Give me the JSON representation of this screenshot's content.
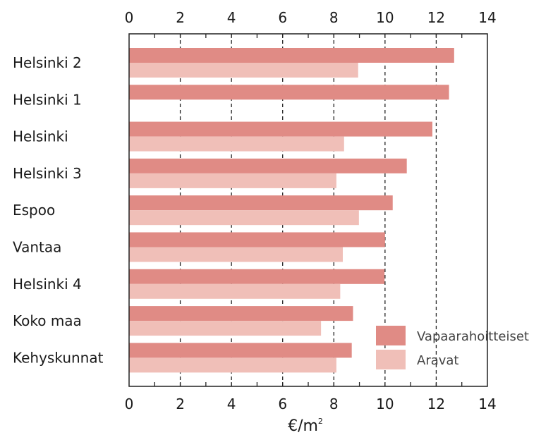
{
  "chart_data": {
    "type": "bar",
    "orientation": "horizontal",
    "categories": [
      "Helsinki 2",
      "Helsinki 1",
      "Helsinki",
      "Helsinki 3",
      "Espoo",
      "Vantaa",
      "Helsinki 4",
      "Koko maa",
      "Kehyskunnat"
    ],
    "series": [
      {
        "name": "Vapaarahoitteiset",
        "values": [
          12.7,
          12.5,
          11.85,
          10.85,
          10.3,
          10.0,
          9.98,
          8.75,
          8.7
        ],
        "color": "#e08b85"
      },
      {
        "name": "Aravat",
        "values": [
          8.95,
          null,
          8.4,
          8.1,
          8.98,
          8.35,
          8.25,
          7.5,
          8.1
        ],
        "color": "#f0bfb8"
      }
    ],
    "xlabel": "€/m",
    "xlabel_sup": "2",
    "xlim": [
      0,
      14
    ],
    "xticks": [
      "0",
      "2",
      "4",
      "6",
      "8",
      "10",
      "12",
      "14"
    ],
    "grid": "vertical dashed lines at each major tick",
    "tick_labels_top_and_bottom": true,
    "legend_position": "bottom-right"
  }
}
